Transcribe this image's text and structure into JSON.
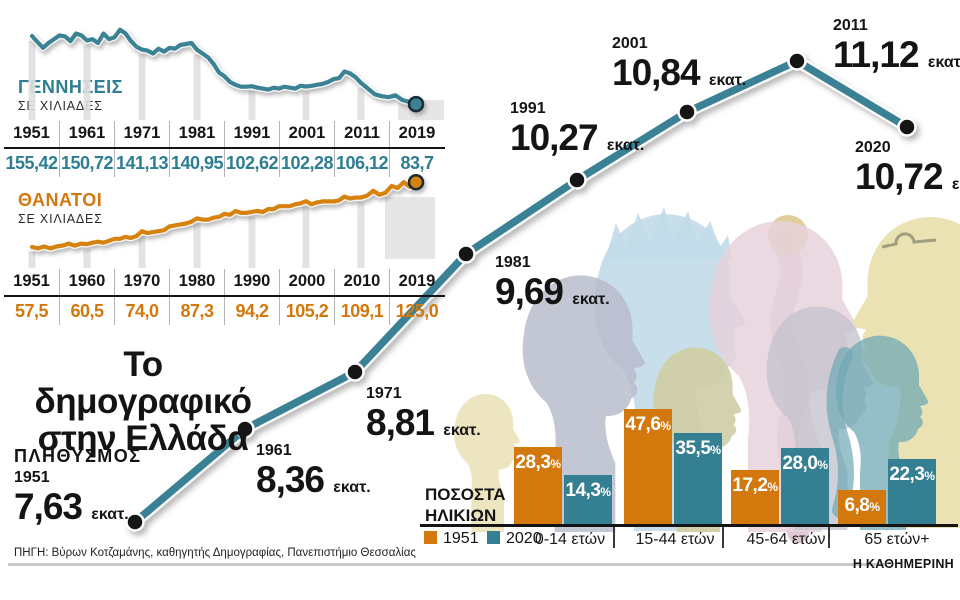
{
  "title": {
    "line1": "Το δημογραφικό",
    "line2": "στην Ελλάδα"
  },
  "source": "ΠΗΓΗ: Βύρων Κοτζαμάνης, καθηγητής Δημογραφίας, Πανεπιστήμιο Θεσσαλίας",
  "brand": "Η ΚΑΘΗΜΕΡΙΝΗ",
  "colors": {
    "teal": "#2e7e93",
    "teal_line": "#3a8294",
    "orange": "#d2780d",
    "dot": "#151515",
    "strip": "#e0e0e0",
    "box": "#e6e6e6"
  },
  "births": {
    "label": "ΓΕΝΝΗΣΕΙΣ",
    "sublabel": "ΣΕ ΧΙΛΙΑΔΕΣ",
    "table_years": [
      "1951",
      "1961",
      "1971",
      "1981",
      "1991",
      "2001",
      "2011",
      "2019"
    ],
    "table_values": [
      "155,42",
      "150,72",
      "141,13",
      "140,95",
      "102,62",
      "102,28",
      "106,12",
      "83,7"
    ]
  },
  "deaths": {
    "label": "ΘΑΝΑΤΟΙ",
    "sublabel": "ΣΕ ΧΙΛΙΑΔΕΣ",
    "table_years": [
      "1951",
      "1960",
      "1970",
      "1980",
      "1990",
      "2000",
      "2010",
      "2019"
    ],
    "table_values": [
      "57,5",
      "60,5",
      "74,0",
      "87,3",
      "94,2",
      "105,2",
      "109,1",
      "125,0"
    ]
  },
  "population": {
    "label": "ΠΛΗΘΥΣΜΟΣ",
    "unit": "εκατ.",
    "points": [
      {
        "year": "1951",
        "value": "7,63"
      },
      {
        "year": "1961",
        "value": "8,36"
      },
      {
        "year": "1971",
        "value": "8,81"
      },
      {
        "year": "1981",
        "value": "9,69"
      },
      {
        "year": "1991",
        "value": "10,27"
      },
      {
        "year": "2001",
        "value": "10,84"
      },
      {
        "year": "2011",
        "value": "11,12"
      },
      {
        "year": "2020",
        "value": "10,72"
      }
    ]
  },
  "ages": {
    "label_line1": "ΠΟΣΟΣΤΑ",
    "label_line2": "ΗΛΙΚΙΩΝ",
    "legend": [
      {
        "label": "1951",
        "color": "#d2780d"
      },
      {
        "label": "2020",
        "color": "#357f92"
      }
    ],
    "categories": [
      "0-14 ετών",
      "15-44 ετών",
      "45-64 ετών",
      "65 ετών+"
    ],
    "series": [
      {
        "name": "1951",
        "display": [
          "28,3",
          "47,6",
          "17,2",
          "6,8"
        ],
        "values": [
          28.3,
          47.6,
          17.2,
          6.8
        ]
      },
      {
        "name": "2020",
        "display": [
          "14,3",
          "35,5",
          "28,0",
          "22,3"
        ],
        "values": [
          14.3,
          35.5,
          28.0,
          22.3
        ]
      }
    ]
  },
  "chart_data": [
    {
      "type": "line",
      "id": "births",
      "title": "ΓΕΝΝΗΣΕΙΣ ΣΕ ΧΙΛΙΑΔΕΣ",
      "x_start": 1951,
      "x_step": 1,
      "tick_years": [
        1951,
        1961,
        1971,
        1981,
        1991,
        2001,
        2011,
        2019
      ],
      "tick_values": [
        155.42,
        150.72,
        141.13,
        140.95,
        102.62,
        102.28,
        106.12,
        83.7
      ],
      "values": [
        155.4,
        149,
        143,
        148,
        152,
        156,
        155,
        150,
        158,
        156,
        150.7,
        152,
        148,
        158,
        152,
        154,
        162,
        158,
        150,
        144,
        141.1,
        140,
        137,
        142,
        139,
        143,
        142,
        146,
        147,
        148,
        140.9,
        137,
        133,
        126,
        117,
        113,
        107,
        104,
        102,
        102,
        102.6,
        101,
        100,
        99,
        101,
        100,
        102,
        101,
        100,
        103,
        102.3,
        103,
        104,
        105,
        107,
        110,
        111,
        118,
        116,
        112,
        106.1,
        100,
        94,
        92,
        91,
        93,
        88,
        86,
        83.7
      ],
      "ylabel": "χιλιάδες",
      "legend_position": "none",
      "grid": false
    },
    {
      "type": "line",
      "id": "deaths",
      "title": "ΘΑΝΑΤΟΙ ΣΕ ΧΙΛΙΑΔΕΣ",
      "x_start": 1951,
      "x_step": 1,
      "tick_years": [
        1951,
        1960,
        1970,
        1980,
        1990,
        2000,
        2010,
        2019
      ],
      "tick_values": [
        57.5,
        60.5,
        74.0,
        87.3,
        94.2,
        105.2,
        109.1,
        125.0
      ],
      "values": [
        57.5,
        56,
        58,
        56,
        58,
        59,
        61,
        59,
        61,
        60.5,
        62,
        63,
        62,
        64,
        66,
        66,
        68,
        67,
        69,
        74,
        72,
        73,
        74,
        75,
        79,
        80,
        81,
        82,
        84,
        87.3,
        86,
        86,
        88,
        89,
        92,
        91,
        95,
        93,
        93,
        94.2,
        95,
        94,
        97,
        97,
        100,
        100,
        100,
        102,
        103,
        105.2,
        102,
        104,
        105,
        105,
        105,
        106,
        110,
        108,
        109,
        109.1,
        111,
        116,
        112,
        114,
        121,
        119,
        125,
        120,
        125
      ],
      "ylabel": "χιλιάδες",
      "legend_position": "none",
      "grid": false
    },
    {
      "type": "line",
      "id": "population",
      "title": "ΠΛΗΘΥΣΜΟΣ (εκατ.)",
      "x": [
        1951,
        1961,
        1971,
        1981,
        1991,
        2001,
        2011,
        2020
      ],
      "values": [
        7.63,
        8.36,
        8.81,
        9.69,
        10.27,
        10.84,
        11.12,
        10.72
      ],
      "ylabel": "εκατομμύρια",
      "legend_position": "none",
      "grid": false
    },
    {
      "type": "bar",
      "id": "ages",
      "title": "ΠΟΣΟΣΤΑ ΗΛΙΚΙΩΝ",
      "categories": [
        "0-14 ετών",
        "15-44 ετών",
        "45-64 ετών",
        "65 ετών+"
      ],
      "series": [
        {
          "name": "1951",
          "values": [
            28.3,
            47.6,
            17.2,
            6.8
          ]
        },
        {
          "name": "2020",
          "values": [
            14.3,
            35.5,
            28.0,
            22.3
          ]
        }
      ],
      "unit": "%",
      "legend_position": "bottom-left",
      "grid": false
    }
  ]
}
